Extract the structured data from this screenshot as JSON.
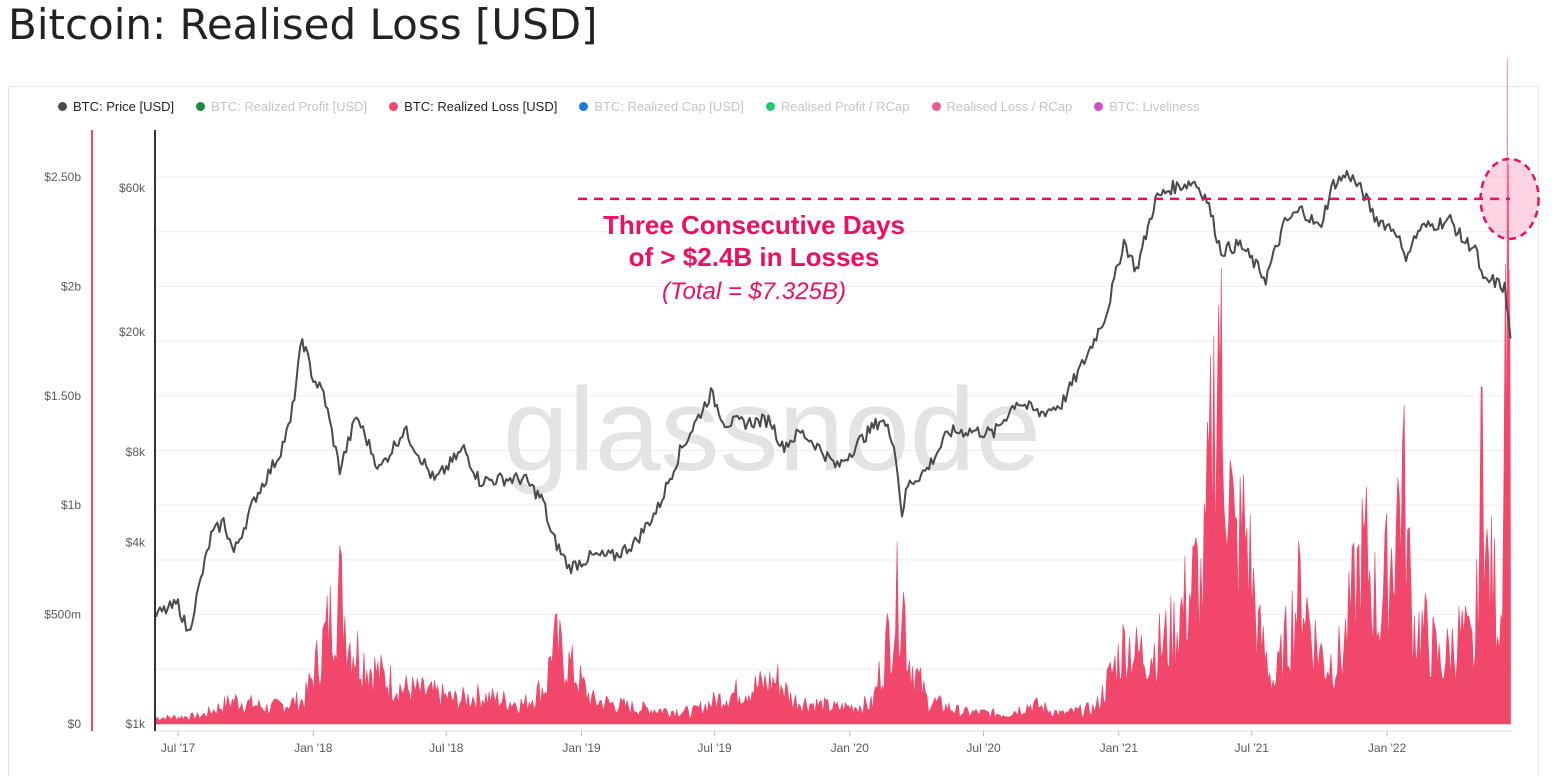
{
  "page": {
    "title": "Bitcoin: Realised Loss [USD]",
    "watermark": "glassnode"
  },
  "legend": [
    {
      "label": "BTC: Price [USD]",
      "color": "#4a4a4a",
      "active": true
    },
    {
      "label": "BTC: Realized Profit [USD]",
      "color": "#1b8a3d",
      "active": false
    },
    {
      "label": "BTC: Realized Loss [USD]",
      "color": "#f0476a",
      "active": true
    },
    {
      "label": "BTC: Realized Cap [USD]",
      "color": "#1e7bd6",
      "active": false
    },
    {
      "label": "Realised Profit / RCap",
      "color": "#22c86a",
      "active": false
    },
    {
      "label": "Realised Loss / RCap",
      "color": "#ee5a8a",
      "active": false
    },
    {
      "label": "BTC: Liveliness",
      "color": "#d24fc4",
      "active": false
    }
  ],
  "annotation": {
    "line1": "Three Consecutive Days",
    "line2": "of > $2.4B in Losses",
    "line3": "(Total = $7.325B)",
    "color": "#ed0f63"
  },
  "chart_data": {
    "type": "line+area",
    "x_axis": {
      "type": "date",
      "range": [
        "2017-06-01",
        "2022-06-20"
      ],
      "tick_labels": [
        "Jul '17",
        "Jan '18",
        "Jul '18",
        "Jan '19",
        "Jul '19",
        "Jan '20",
        "Jul '20",
        "Jan '21",
        "Jul '21",
        "Jan '22"
      ],
      "tick_dates": [
        "2017-07-01",
        "2018-01-01",
        "2018-07-01",
        "2019-01-01",
        "2019-07-01",
        "2020-01-01",
        "2020-07-01",
        "2021-01-01",
        "2021-07-01",
        "2022-01-01"
      ]
    },
    "y_left": {
      "label": "BTC: Realized Loss [USD]",
      "scale": "linear",
      "range": [
        0,
        2.6
      ],
      "unit": "billion USD",
      "tick_labels": [
        "$0",
        "$500m",
        "$1b",
        "$1.50b",
        "$2b",
        "$2.50b"
      ],
      "tick_values": [
        0,
        0.5,
        1.0,
        1.5,
        2.0,
        2.5
      ]
    },
    "y_right": {
      "label": "BTC: Price [USD]",
      "scale": "log",
      "range": [
        1000,
        80000
      ],
      "tick_labels": [
        "$1k",
        "$4k",
        "$8k",
        "$20k",
        "$60k"
      ],
      "tick_values": [
        1000,
        4000,
        8000,
        20000,
        60000
      ]
    },
    "series": [
      {
        "name": "BTC: Price [USD]",
        "type": "line",
        "color": "#4a4a4a",
        "axis": "right",
        "x": [
          "2017-06-01",
          "2017-07-01",
          "2017-07-15",
          "2017-08-15",
          "2017-09-01",
          "2017-09-15",
          "2017-10-15",
          "2017-11-15",
          "2017-12-01",
          "2017-12-17",
          "2018-01-01",
          "2018-01-15",
          "2018-02-06",
          "2018-03-01",
          "2018-04-01",
          "2018-05-05",
          "2018-06-15",
          "2018-07-25",
          "2018-08-15",
          "2018-09-15",
          "2018-10-15",
          "2018-11-10",
          "2018-11-20",
          "2018-12-15",
          "2019-01-15",
          "2019-02-15",
          "2019-03-15",
          "2019-04-15",
          "2019-05-15",
          "2019-06-26",
          "2019-07-15",
          "2019-08-15",
          "2019-09-15",
          "2019-10-01",
          "2019-10-26",
          "2019-11-15",
          "2019-12-15",
          "2020-01-15",
          "2020-02-13",
          "2020-03-01",
          "2020-03-12",
          "2020-03-20",
          "2020-04-15",
          "2020-05-15",
          "2020-06-15",
          "2020-07-15",
          "2020-08-15",
          "2020-09-15",
          "2020-10-15",
          "2020-11-15",
          "2020-12-15",
          "2021-01-08",
          "2021-01-25",
          "2021-02-20",
          "2021-03-13",
          "2021-04-14",
          "2021-05-01",
          "2021-05-20",
          "2021-06-15",
          "2021-07-20",
          "2021-08-15",
          "2021-09-07",
          "2021-10-01",
          "2021-10-20",
          "2021-11-10",
          "2021-12-01",
          "2021-12-15",
          "2022-01-15",
          "2022-01-24",
          "2022-02-15",
          "2022-03-28",
          "2022-04-15",
          "2022-05-01",
          "2022-05-12",
          "2022-05-25",
          "2022-06-10",
          "2022-06-18"
        ],
        "values": [
          2300,
          2500,
          2000,
          4200,
          4700,
          3700,
          5700,
          7800,
          10000,
          19000,
          14000,
          12500,
          7000,
          10500,
          7000,
          9500,
          6400,
          8200,
          6400,
          6500,
          6500,
          5500,
          4300,
          3300,
          3600,
          3600,
          4000,
          5200,
          8000,
          12500,
          10000,
          10000,
          10200,
          8300,
          9300,
          8500,
          7100,
          8700,
          10300,
          8700,
          5000,
          6200,
          7000,
          9300,
          9400,
          9200,
          11800,
          10700,
          11500,
          16000,
          23000,
          40000,
          32000,
          55000,
          60000,
          63000,
          55000,
          37000,
          39000,
          30000,
          46000,
          51000,
          44000,
          62000,
          67000,
          57000,
          48000,
          43000,
          35000,
          44000,
          47000,
          40000,
          38000,
          29000,
          29500,
          28000,
          19000
        ]
      },
      {
        "name": "BTC: Realized Loss [USD]",
        "type": "area",
        "color": "#f0476a",
        "axis": "left",
        "unit": "billion USD",
        "x": [
          "2017-06-01",
          "2017-08-01",
          "2017-09-15",
          "2017-11-01",
          "2017-12-20",
          "2018-01-10",
          "2018-01-22",
          "2018-02-06",
          "2018-02-20",
          "2018-03-15",
          "2018-04-01",
          "2018-05-01",
          "2018-06-15",
          "2018-07-15",
          "2018-08-15",
          "2018-09-15",
          "2018-10-15",
          "2018-11-15",
          "2018-11-22",
          "2018-12-15",
          "2019-01-15",
          "2019-03-15",
          "2019-06-01",
          "2019-07-15",
          "2019-09-25",
          "2019-10-15",
          "2019-12-15",
          "2020-02-01",
          "2020-03-12",
          "2020-03-20",
          "2020-04-15",
          "2020-06-01",
          "2020-08-01",
          "2020-09-05",
          "2020-10-15",
          "2020-12-01",
          "2021-01-11",
          "2021-01-25",
          "2021-02-23",
          "2021-03-15",
          "2021-04-18",
          "2021-04-25",
          "2021-05-19",
          "2021-05-22",
          "2021-05-26",
          "2021-06-08",
          "2021-06-22",
          "2021-07-10",
          "2021-08-01",
          "2021-09-07",
          "2021-09-21",
          "2021-10-10",
          "2021-11-01",
          "2021-11-26",
          "2021-12-04",
          "2021-12-20",
          "2022-01-05",
          "2022-01-22",
          "2022-02-05",
          "2022-02-24",
          "2022-03-15",
          "2022-04-11",
          "2022-05-01",
          "2022-05-09",
          "2022-05-12",
          "2022-05-15",
          "2022-05-25",
          "2022-06-05",
          "2022-06-13",
          "2022-06-14",
          "2022-06-16",
          "2022-06-18"
        ],
        "values": [
          0.03,
          0.04,
          0.12,
          0.08,
          0.12,
          0.35,
          0.5,
          0.68,
          0.42,
          0.3,
          0.25,
          0.18,
          0.15,
          0.12,
          0.14,
          0.12,
          0.1,
          0.2,
          0.42,
          0.3,
          0.12,
          0.08,
          0.06,
          0.14,
          0.22,
          0.12,
          0.08,
          0.1,
          0.72,
          0.35,
          0.12,
          0.06,
          0.05,
          0.1,
          0.05,
          0.08,
          0.42,
          0.35,
          0.38,
          0.45,
          0.75,
          0.65,
          2.1,
          1.3,
          1.5,
          0.85,
          1.0,
          0.45,
          0.2,
          0.7,
          0.45,
          0.3,
          0.35,
          0.82,
          0.85,
          0.55,
          0.8,
          1.25,
          0.5,
          0.45,
          0.3,
          0.45,
          0.35,
          1.2,
          1.75,
          0.8,
          0.7,
          0.55,
          2.42,
          2.45,
          2.42,
          0.7
        ]
      }
    ],
    "reference_line": {
      "axis": "left",
      "value": 2.4,
      "style": "dashed",
      "color": "#ed0f63"
    },
    "highlight": {
      "shape": "ellipse",
      "x": "2022-06-14",
      "y": 2.4,
      "axis": "left",
      "color": "#ed0f63"
    },
    "grid": true,
    "legend_position": "top-left"
  }
}
